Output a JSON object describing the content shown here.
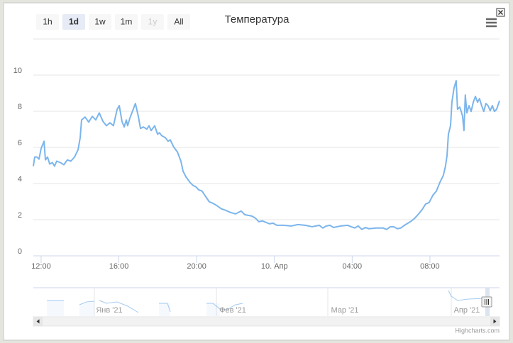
{
  "range_selector": {
    "buttons": [
      "1h",
      "1d",
      "1w",
      "1m",
      "1y",
      "All"
    ],
    "selected": 1,
    "disabled": [
      4
    ]
  },
  "chart_data": {
    "type": "line",
    "title": "Температура",
    "x": [
      11.6,
      11.67,
      11.78,
      11.89,
      12.0,
      12.15,
      12.22,
      12.33,
      12.44,
      12.58,
      12.69,
      12.8,
      12.99,
      13.17,
      13.35,
      13.53,
      13.72,
      13.9,
      14.01,
      14.08,
      14.26,
      14.45,
      14.63,
      14.81,
      14.99,
      15.18,
      15.36,
      15.54,
      15.72,
      15.91,
      16.02,
      16.16,
      16.27,
      16.38,
      16.45,
      16.56,
      16.71,
      16.85,
      17.0,
      17.11,
      17.26,
      17.44,
      17.55,
      17.66,
      17.84,
      17.99,
      18.09,
      18.2,
      18.39,
      18.53,
      18.64,
      18.82,
      19.01,
      19.19,
      19.3,
      19.45,
      19.66,
      19.81,
      19.96,
      20.1,
      20.28,
      20.47,
      20.65,
      20.83,
      21.01,
      21.27,
      21.49,
      21.74,
      22.0,
      22.29,
      22.47,
      22.84,
      23.02,
      23.2,
      23.39,
      23.57,
      23.75,
      23.93,
      24.12,
      24.48,
      24.85,
      25.21,
      25.58,
      25.94,
      26.31,
      26.49,
      26.67,
      26.85,
      27.04,
      27.4,
      27.77,
      27.95,
      28.13,
      28.31,
      28.5,
      28.68,
      28.86,
      29.23,
      29.59,
      29.77,
      29.96,
      30.14,
      30.32,
      30.5,
      30.69,
      30.87,
      31.05,
      31.23,
      31.42,
      31.6,
      31.78,
      31.96,
      32.15,
      32.33,
      32.51,
      32.69,
      32.8,
      32.88,
      32.95,
      33.06,
      33.13,
      33.24,
      33.35,
      33.42,
      33.53,
      33.61,
      33.68,
      33.75,
      33.82,
      33.9,
      34.01,
      34.12,
      34.23,
      34.34,
      34.45,
      34.55,
      34.66,
      34.77,
      34.88,
      34.99,
      35.1,
      35.21,
      35.32,
      35.43,
      35.58
    ],
    "series": [
      {
        "color": "#7cb5ec",
        "values": [
          4.96,
          5.47,
          5.47,
          5.35,
          5.94,
          6.34,
          5.31,
          5.47,
          5.08,
          5.16,
          4.96,
          5.24,
          5.16,
          5.04,
          5.31,
          5.24,
          5.47,
          5.87,
          6.54,
          7.52,
          7.68,
          7.4,
          7.72,
          7.52,
          7.91,
          7.44,
          7.2,
          7.36,
          7.2,
          8.11,
          8.31,
          7.44,
          7.13,
          7.52,
          7.2,
          7.6,
          8.03,
          8.43,
          7.72,
          7.05,
          7.13,
          7.01,
          7.2,
          6.93,
          7.2,
          6.73,
          6.81,
          6.65,
          6.54,
          6.34,
          6.42,
          6.02,
          5.75,
          5.24,
          4.69,
          4.37,
          4.06,
          3.9,
          3.82,
          3.66,
          3.58,
          3.27,
          2.99,
          2.91,
          2.8,
          2.6,
          2.52,
          2.4,
          2.32,
          2.48,
          2.28,
          2.2,
          2.09,
          1.89,
          1.93,
          1.85,
          1.77,
          1.81,
          1.69,
          1.69,
          1.65,
          1.73,
          1.69,
          1.61,
          1.69,
          1.54,
          1.65,
          1.69,
          1.57,
          1.65,
          1.69,
          1.61,
          1.54,
          1.65,
          1.46,
          1.57,
          1.5,
          1.54,
          1.54,
          1.46,
          1.61,
          1.61,
          1.5,
          1.54,
          1.69,
          1.81,
          1.93,
          2.09,
          2.32,
          2.56,
          2.87,
          2.95,
          3.35,
          3.58,
          4.06,
          4.45,
          4.96,
          5.55,
          6.73,
          7.2,
          8.5,
          9.29,
          9.69,
          8.11,
          8.23,
          7.99,
          7.72,
          6.93,
          8.9,
          7.91,
          8.31,
          7.99,
          8.5,
          8.82,
          8.5,
          8.7,
          8.31,
          7.99,
          8.43,
          8.31,
          8.03,
          8.31,
          7.99,
          8.11,
          8.58
        ]
      }
    ],
    "xlim": [
      11.6,
      35.58
    ],
    "xticks": [
      {
        "value": 12,
        "label": "12:00"
      },
      {
        "value": 16,
        "label": "16:00"
      },
      {
        "value": 20,
        "label": "20:00"
      },
      {
        "value": 24,
        "label": "10. Апр"
      },
      {
        "value": 28,
        "label": "04:00"
      },
      {
        "value": 32,
        "label": "08:00"
      }
    ],
    "ylim": [
      0,
      12
    ],
    "yticks": [
      0,
      2,
      4,
      6,
      8,
      10
    ],
    "grid": true
  },
  "navigator": {
    "labels": [
      "Янв '21",
      "Фев '21",
      "Мар '21",
      "Апр '21"
    ]
  },
  "credits": "Highcharts.com"
}
